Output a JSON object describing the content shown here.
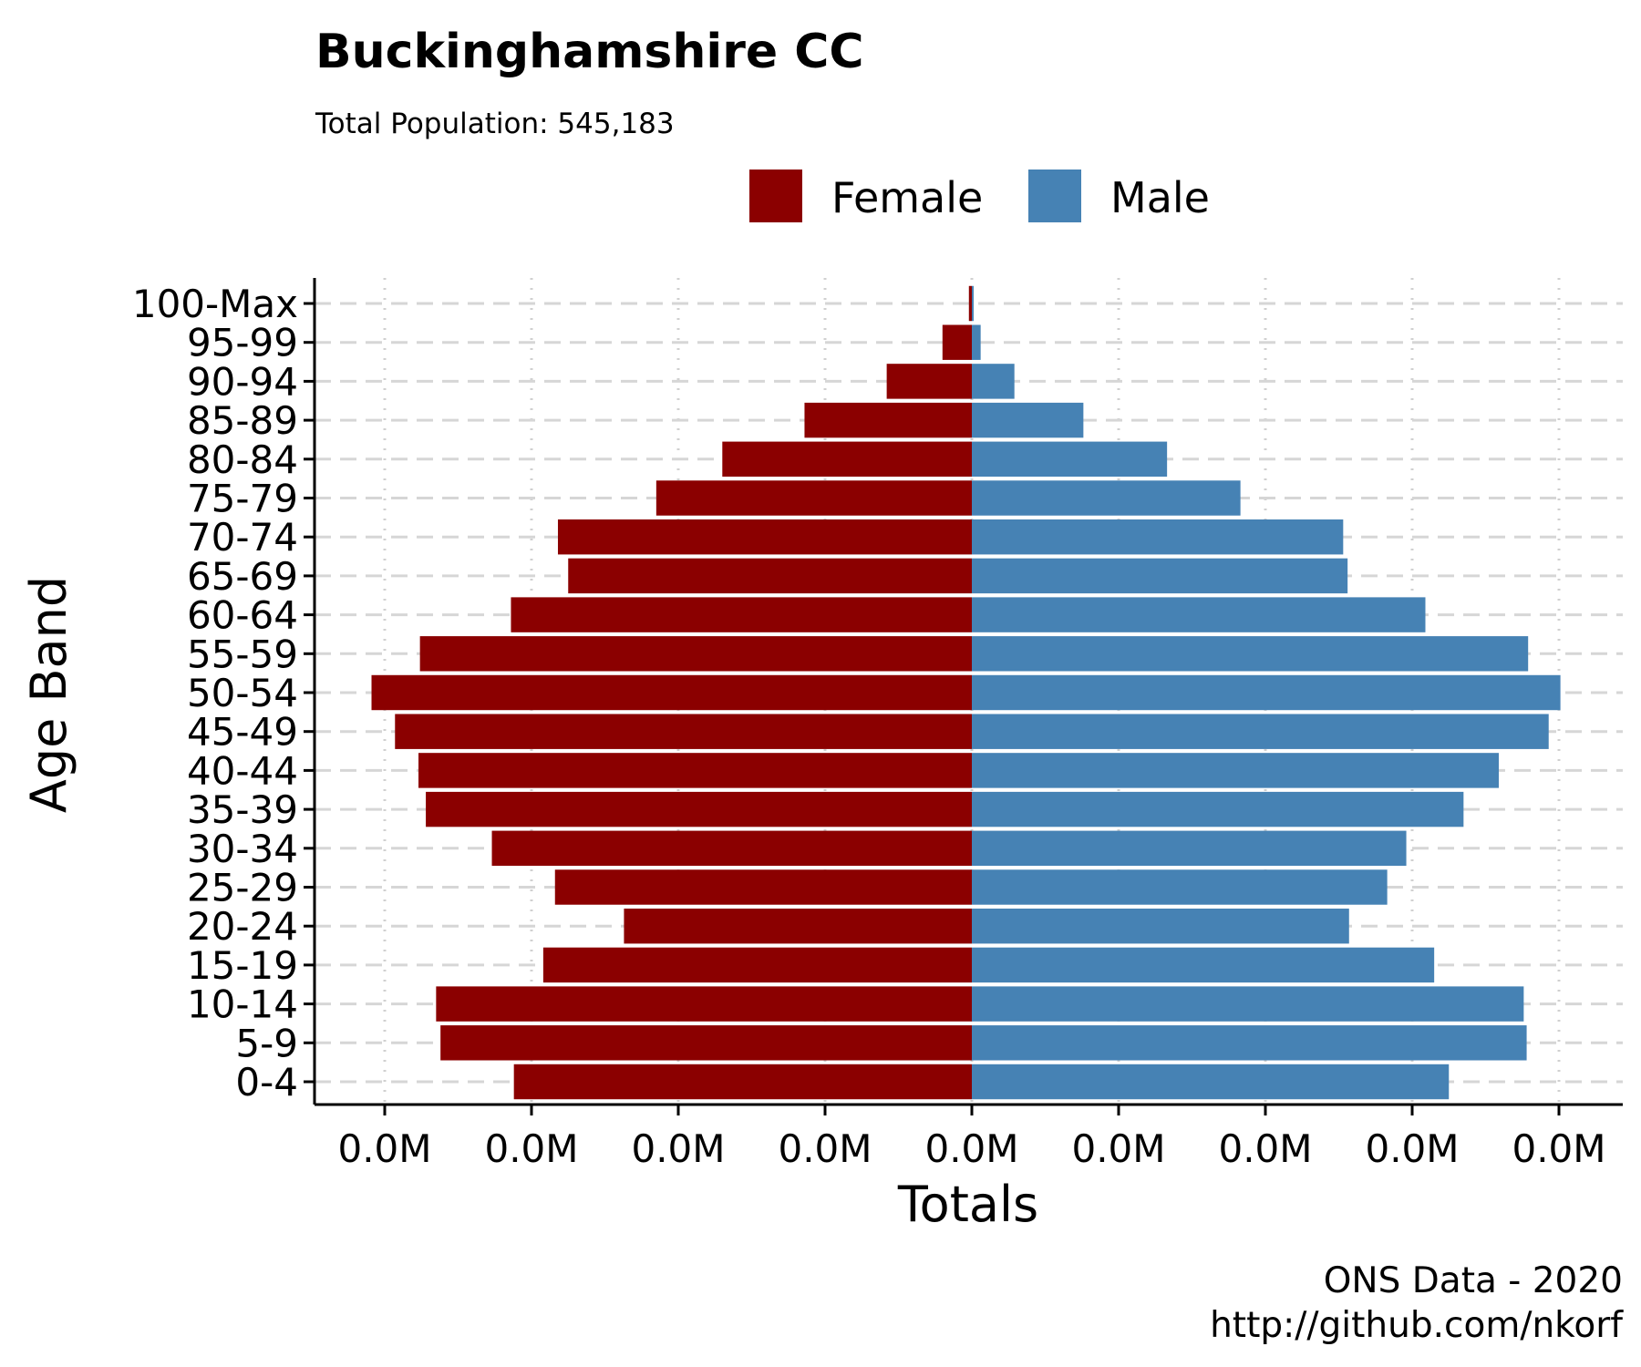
{
  "chart_data": {
    "type": "bar",
    "orientation": "horizontal",
    "title": "Buckinghamshire CC",
    "subtitle": "Total Population:  545,183",
    "xlabel": "Totals",
    "ylabel": "Age Band",
    "caption_lines": [
      "ONS Data - 2020",
      "http://github.com/nkorf"
    ],
    "legend_position": "top",
    "grid": true,
    "xlim": [
      -23000,
      22500
    ],
    "x_ticks": [
      -20000,
      -15000,
      -10000,
      -5000,
      0,
      5000,
      10000,
      15000,
      20000
    ],
    "x_tick_labels": [
      "0.0M",
      "0.0M",
      "0.0M",
      "0.0M",
      "0.0M",
      "0.0M",
      "0.0M",
      "0.0M",
      "0.0M"
    ],
    "categories": [
      "0-4",
      "5-9",
      "10-14",
      "15-19",
      "20-24",
      "25-29",
      "30-34",
      "35-39",
      "40-44",
      "45-49",
      "50-54",
      "55-59",
      "60-64",
      "65-69",
      "70-74",
      "75-79",
      "80-84",
      "85-89",
      "90-94",
      "95-99",
      "100-Max"
    ],
    "series": [
      {
        "name": "Female",
        "color": "#8B0000",
        "values": [
          -15600,
          -18100,
          -18250,
          -14600,
          -11850,
          -14200,
          -16350,
          -18600,
          -18850,
          -19650,
          -20450,
          -18800,
          -15700,
          -13750,
          -14100,
          -10750,
          -8500,
          -5700,
          -2900,
          -1000,
          -100
        ]
      },
      {
        "name": "Male",
        "color": "#4682B4",
        "values": [
          16250,
          18900,
          18800,
          15750,
          12850,
          14150,
          14800,
          16750,
          17950,
          19650,
          20050,
          18950,
          15450,
          12800,
          12650,
          9150,
          6650,
          3800,
          1450,
          300,
          50
        ]
      }
    ]
  }
}
